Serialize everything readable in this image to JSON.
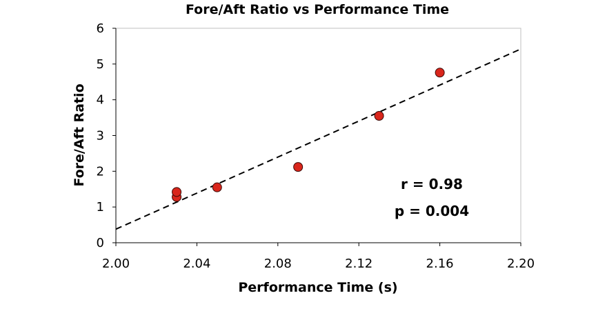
{
  "chart_data": {
    "type": "scatter",
    "title": "Fore/Aft Ratio vs Performance Time",
    "xlabel": "Performance Time (s)",
    "ylabel": "Fore/Aft Ratio",
    "xlim": [
      2.0,
      2.2
    ],
    "ylim": [
      0,
      6
    ],
    "x_ticks": [
      "2.00",
      "2.04",
      "2.08",
      "2.12",
      "2.16",
      "2.20"
    ],
    "y_ticks": [
      "0",
      "1",
      "2",
      "3",
      "4",
      "5",
      "6"
    ],
    "grid": false,
    "series": [
      {
        "points": [
          {
            "x": 2.03,
            "y": 1.28
          },
          {
            "x": 2.03,
            "y": 1.42
          },
          {
            "x": 2.05,
            "y": 1.55
          },
          {
            "x": 2.09,
            "y": 2.12
          },
          {
            "x": 2.13,
            "y": 3.55
          },
          {
            "x": 2.16,
            "y": 4.76
          }
        ],
        "marker_color": "#d9261c",
        "marker_edge": "#3a0a08"
      }
    ],
    "trendline": {
      "style": "dashed",
      "color": "#000000",
      "from": {
        "x": 2.0,
        "y": 0.38
      },
      "to": {
        "x": 2.2,
        "y": 5.42
      }
    },
    "annotations": [
      "r = 0.98",
      "p = 0.004"
    ]
  }
}
